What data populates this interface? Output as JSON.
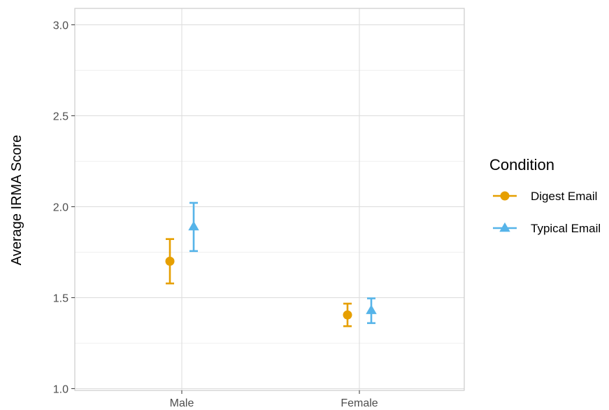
{
  "chart_data": {
    "type": "scatter",
    "categories": [
      "Male",
      "Female"
    ],
    "ylabel": "Average IRMA Score",
    "xlabel": "",
    "ylim": [
      0.99,
      3.09
    ],
    "yticks": [
      "1.0",
      "1.5",
      "2.0",
      "2.5",
      "3.0"
    ],
    "grid": true,
    "error_bars": true,
    "legend": {
      "title": "Condition",
      "position": "right"
    },
    "series": [
      {
        "name": "Digest Email",
        "color": "#E69F00",
        "marker": "circle",
        "values": [
          1.7,
          1.405
        ],
        "lower": [
          1.578,
          1.343
        ],
        "upper": [
          1.822,
          1.467
        ]
      },
      {
        "name": "Typical Email",
        "color": "#56B4E9",
        "marker": "triangle",
        "values": [
          1.89,
          1.43
        ],
        "lower": [
          1.756,
          1.36
        ],
        "upper": [
          2.021,
          1.496
        ]
      }
    ]
  }
}
